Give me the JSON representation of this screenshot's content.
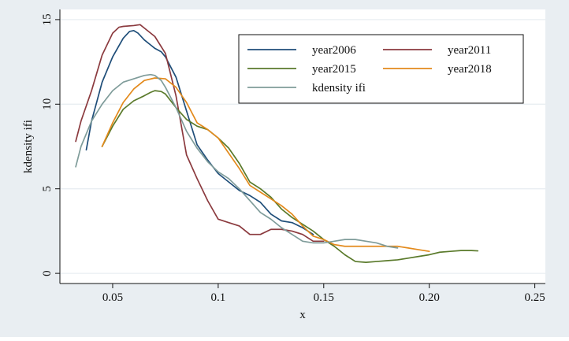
{
  "chart_data": {
    "type": "line",
    "title": "",
    "xlabel": "x",
    "ylabel": "kdensity ifi",
    "xlim": [
      0.025,
      0.255
    ],
    "ylim": [
      -0.6,
      15.6
    ],
    "xticks": [
      {
        "value": 0.05,
        "label": "0.05"
      },
      {
        "value": 0.1,
        "label": "0.1"
      },
      {
        "value": 0.15,
        "label": "0.15"
      },
      {
        "value": 0.2,
        "label": "0.20"
      },
      {
        "value": 0.25,
        "label": "0.25"
      }
    ],
    "yticks": [
      {
        "value": 0,
        "label": "0"
      },
      {
        "value": 5,
        "label": "5"
      },
      {
        "value": 10,
        "label": "10"
      },
      {
        "value": 15,
        "label": "15"
      }
    ],
    "grid": true,
    "legend_position": "top-right",
    "colors": {
      "background": "#e9eef2",
      "plot_background": "#ffffff",
      "grid": "#e9eef2"
    },
    "series": [
      {
        "name": "year2006",
        "color": "#1f4e79",
        "x": [
          0.0375,
          0.04,
          0.045,
          0.05,
          0.055,
          0.058,
          0.06,
          0.062,
          0.065,
          0.068,
          0.07,
          0.073,
          0.075,
          0.08,
          0.085,
          0.09,
          0.095,
          0.1,
          0.105,
          0.11,
          0.115,
          0.12,
          0.125,
          0.13,
          0.135,
          0.14,
          0.145
        ],
        "y": [
          7.3,
          9.0,
          11.3,
          12.8,
          13.9,
          14.3,
          14.35,
          14.2,
          13.8,
          13.5,
          13.3,
          13.1,
          12.8,
          11.6,
          9.6,
          7.6,
          6.7,
          5.9,
          5.4,
          4.9,
          4.6,
          4.2,
          3.5,
          3.1,
          3.0,
          2.7,
          2.3
        ]
      },
      {
        "name": "year2011",
        "color": "#8b3a3e",
        "x": [
          0.0325,
          0.035,
          0.04,
          0.045,
          0.05,
          0.053,
          0.055,
          0.06,
          0.063,
          0.065,
          0.07,
          0.075,
          0.08,
          0.085,
          0.09,
          0.095,
          0.1,
          0.105,
          0.11,
          0.115,
          0.12,
          0.125,
          0.13,
          0.135,
          0.14,
          0.145,
          0.15
        ],
        "y": [
          7.8,
          9.0,
          10.8,
          12.9,
          14.2,
          14.55,
          14.6,
          14.65,
          14.7,
          14.5,
          14.0,
          13.0,
          10.5,
          7.0,
          5.6,
          4.3,
          3.2,
          3.0,
          2.8,
          2.3,
          2.3,
          2.6,
          2.6,
          2.5,
          2.3,
          1.9,
          1.9
        ]
      },
      {
        "name": "year2015",
        "color": "#5a7a2b",
        "x": [
          0.045,
          0.05,
          0.055,
          0.06,
          0.065,
          0.068,
          0.07,
          0.073,
          0.075,
          0.08,
          0.085,
          0.09,
          0.095,
          0.1,
          0.105,
          0.11,
          0.115,
          0.12,
          0.125,
          0.13,
          0.135,
          0.14,
          0.145,
          0.15,
          0.155,
          0.16,
          0.165,
          0.17,
          0.175,
          0.18,
          0.185,
          0.19,
          0.195,
          0.2,
          0.205,
          0.21,
          0.215,
          0.22,
          0.223
        ],
        "y": [
          7.5,
          8.7,
          9.7,
          10.2,
          10.5,
          10.7,
          10.8,
          10.75,
          10.6,
          9.8,
          9.1,
          8.7,
          8.5,
          8.0,
          7.4,
          6.5,
          5.4,
          5.0,
          4.5,
          3.8,
          3.3,
          2.9,
          2.5,
          2.0,
          1.6,
          1.1,
          0.7,
          0.65,
          0.7,
          0.75,
          0.8,
          0.9,
          1.0,
          1.1,
          1.25,
          1.3,
          1.35,
          1.35,
          1.33
        ]
      },
      {
        "name": "year2018",
        "color": "#e38a1c",
        "x": [
          0.045,
          0.05,
          0.055,
          0.06,
          0.065,
          0.07,
          0.075,
          0.08,
          0.085,
          0.09,
          0.095,
          0.1,
          0.105,
          0.11,
          0.115,
          0.12,
          0.125,
          0.13,
          0.135,
          0.14,
          0.145,
          0.15,
          0.155,
          0.16,
          0.165,
          0.17,
          0.175,
          0.18,
          0.185,
          0.19,
          0.195,
          0.2
        ],
        "y": [
          7.5,
          8.9,
          10.1,
          10.9,
          11.4,
          11.55,
          11.5,
          11.0,
          10.1,
          8.9,
          8.5,
          8.0,
          7.1,
          6.2,
          5.2,
          4.8,
          4.4,
          4.0,
          3.5,
          2.8,
          2.2,
          2.0,
          1.7,
          1.6,
          1.6,
          1.6,
          1.6,
          1.6,
          1.6,
          1.5,
          1.4,
          1.3
        ]
      },
      {
        "name": "kdensity ifi",
        "color": "#7f9c9a",
        "x": [
          0.0325,
          0.035,
          0.04,
          0.045,
          0.05,
          0.055,
          0.06,
          0.065,
          0.068,
          0.07,
          0.073,
          0.075,
          0.08,
          0.085,
          0.09,
          0.095,
          0.1,
          0.105,
          0.11,
          0.115,
          0.12,
          0.125,
          0.13,
          0.135,
          0.14,
          0.145,
          0.15,
          0.155,
          0.16,
          0.165,
          0.17,
          0.175,
          0.18,
          0.185
        ],
        "y": [
          6.3,
          7.5,
          9.0,
          10.0,
          10.8,
          11.3,
          11.5,
          11.7,
          11.75,
          11.7,
          11.4,
          11.0,
          9.8,
          8.4,
          7.4,
          6.6,
          6.0,
          5.6,
          5.0,
          4.3,
          3.6,
          3.2,
          2.7,
          2.3,
          1.9,
          1.8,
          1.8,
          1.9,
          2.0,
          2.0,
          1.9,
          1.8,
          1.6,
          1.5
        ]
      }
    ]
  }
}
